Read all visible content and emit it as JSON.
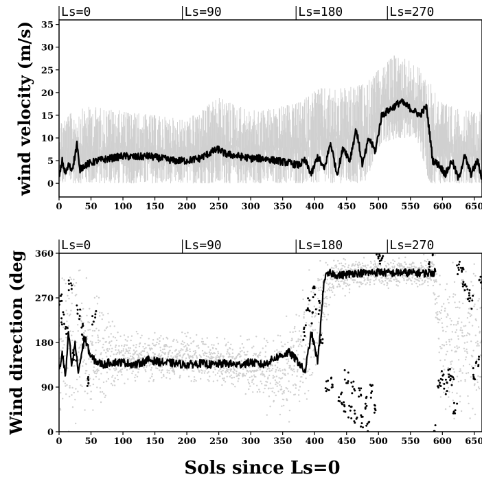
{
  "chart_data": [
    {
      "type": "line",
      "ylabel": "wind velocity (m/s)",
      "xlim": [
        0,
        662
      ],
      "ylim": [
        -3,
        36
      ],
      "x_ticks": [
        0,
        50,
        100,
        150,
        200,
        250,
        300,
        350,
        400,
        450,
        500,
        550,
        600,
        650
      ],
      "y_ticks": [
        0,
        5,
        10,
        15,
        20,
        25,
        30,
        35
      ],
      "season_markers": [
        {
          "label": "Ls=0",
          "sol": 0
        },
        {
          "label": "Ls=90",
          "sol": 193
        },
        {
          "label": "Ls=180",
          "sol": 371
        },
        {
          "label": "Ls=270",
          "sol": 514
        }
      ],
      "series": [
        {
          "color": "#d0d0d0",
          "style": "envelope",
          "x": [
            0,
            25,
            50,
            100,
            150,
            200,
            250,
            300,
            350,
            380,
            400,
            450,
            480,
            500,
            530,
            560,
            580,
            600,
            630,
            662
          ],
          "y_low": [
            0,
            0,
            0,
            0,
            0,
            0,
            0,
            0,
            0,
            0,
            0,
            0,
            0,
            8,
            10,
            10,
            0,
            0,
            0,
            0
          ],
          "y_high": [
            14,
            16,
            17,
            16,
            15,
            14,
            19,
            16,
            17,
            18,
            21,
            21,
            22,
            25,
            29,
            26,
            23,
            18,
            16,
            16
          ]
        },
        {
          "color": "#000000",
          "style": "line",
          "x": [
            0,
            5,
            10,
            15,
            20,
            25,
            28,
            32,
            40,
            50,
            60,
            80,
            100,
            120,
            140,
            160,
            180,
            200,
            220,
            240,
            250,
            260,
            280,
            300,
            320,
            340,
            360,
            375,
            385,
            395,
            405,
            415,
            425,
            435,
            445,
            455,
            465,
            475,
            485,
            495,
            505,
            515,
            525,
            535,
            545,
            555,
            565,
            575,
            585,
            595,
            605,
            615,
            625,
            635,
            645,
            655,
            662
          ],
          "y": [
            1,
            5,
            2,
            4,
            3,
            6,
            9,
            3,
            4,
            4.5,
            5,
            5.5,
            6,
            5.8,
            6,
            5.5,
            5,
            5,
            5.5,
            7,
            7.5,
            6.5,
            6,
            5.5,
            5.5,
            5,
            4.5,
            4,
            5,
            2,
            6,
            3,
            9,
            2,
            8,
            5,
            12,
            4,
            10,
            7,
            15,
            16,
            17,
            18,
            17,
            16,
            15,
            17,
            5,
            4,
            2,
            5,
            1,
            6,
            2,
            5,
            1
          ]
        }
      ]
    },
    {
      "type": "scatter",
      "ylabel": "Wind direction (deg",
      "xlabel": "Sols since Ls=0",
      "xlim": [
        0,
        662
      ],
      "ylim": [
        0,
        360
      ],
      "x_ticks": [
        0,
        50,
        100,
        150,
        200,
        250,
        300,
        350,
        400,
        450,
        500,
        550,
        600,
        650
      ],
      "y_ticks": [
        0,
        90,
        180,
        270,
        360
      ],
      "season_markers": [
        {
          "label": "Ls=0",
          "sol": 0
        },
        {
          "label": "Ls=90",
          "sol": 193
        },
        {
          "label": "Ls=180",
          "sol": 371
        },
        {
          "label": "Ls=270",
          "sol": 514
        }
      ],
      "series": [
        {
          "color": "#cfcfcf",
          "style": "points",
          "x": [
            0,
            50,
            100,
            150,
            200,
            250,
            300,
            350,
            380,
            410,
            430,
            480,
            520,
            560,
            585,
            600,
            630,
            662
          ],
          "y_low": [
            0,
            30,
            100,
            100,
            100,
            100,
            70,
            20,
            30,
            150,
            270,
            290,
            290,
            290,
            280,
            0,
            0,
            0
          ],
          "y_high": [
            360,
            300,
            200,
            200,
            200,
            190,
            190,
            200,
            300,
            360,
            360,
            350,
            350,
            350,
            360,
            360,
            360,
            360
          ]
        },
        {
          "color": "#000000",
          "style": "line",
          "x": [
            0,
            5,
            10,
            15,
            20,
            25,
            30,
            40,
            50,
            60,
            70,
            80,
            100,
            120,
            140,
            160,
            180,
            200,
            220,
            240,
            260,
            280,
            300,
            320,
            340,
            360,
            375,
            385,
            395,
            405,
            415,
            425,
            440,
            460,
            480,
            500,
            520,
            540,
            560,
            580,
            590
          ],
          "y": [
            120,
            160,
            110,
            200,
            130,
            180,
            120,
            190,
            150,
            140,
            135,
            140,
            140,
            135,
            145,
            140,
            138,
            135,
            138,
            135,
            138,
            135,
            140,
            135,
            150,
            160,
            140,
            120,
            200,
            140,
            310,
            320,
            315,
            320,
            320,
            322,
            320,
            321,
            320,
            320,
            322
          ]
        },
        {
          "color": "#000000",
          "style": "dots",
          "points": [
            [
              2,
              270
            ],
            [
              6,
              230
            ],
            [
              12,
              200
            ],
            [
              18,
              300
            ],
            [
              24,
              150
            ],
            [
              30,
              240
            ],
            [
              35,
              210
            ],
            [
              40,
              180
            ],
            [
              45,
              100
            ],
            [
              55,
              230
            ],
            [
              385,
              200
            ],
            [
              390,
              260
            ],
            [
              395,
              230
            ],
            [
              400,
              280
            ],
            [
              405,
              250
            ],
            [
              410,
              180
            ],
            [
              420,
              90
            ],
            [
              428,
              100
            ],
            [
              432,
              380
            ],
            [
              440,
              70
            ],
            [
              445,
              50
            ],
            [
              450,
              110
            ],
            [
              455,
              40
            ],
            [
              460,
              90
            ],
            [
              465,
              30
            ],
            [
              470,
              75
            ],
            [
              475,
              20
            ],
            [
              480,
              60
            ],
            [
              484,
              10
            ],
            [
              490,
              80
            ],
            [
              495,
              40
            ],
            [
              500,
              350
            ],
            [
              505,
              340
            ],
            [
              580,
              340
            ],
            [
              585,
              360
            ],
            [
              590,
              10
            ],
            [
              595,
              100
            ],
            [
              600,
              110
            ],
            [
              605,
              90
            ],
            [
              610,
              120
            ],
            [
              615,
              100
            ],
            [
              620,
              50
            ],
            [
              625,
              330
            ],
            [
              630,
              320
            ],
            [
              635,
              300
            ],
            [
              640,
              280
            ],
            [
              645,
              260
            ],
            [
              650,
              120
            ],
            [
              655,
              140
            ],
            [
              660,
              300
            ]
          ]
        }
      ]
    }
  ]
}
